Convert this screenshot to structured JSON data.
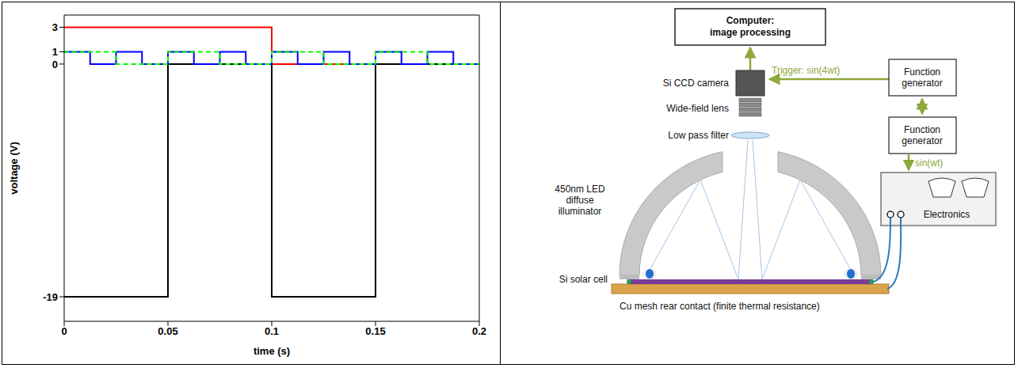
{
  "chart_data": {
    "type": "step",
    "xlabel": "time (s)",
    "ylabel": "voltage (V)",
    "x": [
      0,
      0.0125,
      0.025,
      0.0375,
      0.05,
      0.0625,
      0.075,
      0.0875,
      0.1,
      0.1125,
      0.125,
      0.1375,
      0.15,
      0.1625,
      0.175,
      0.1875,
      0.2
    ],
    "series": [
      {
        "color": "#ff0000",
        "line_style": "solid",
        "values": [
          3,
          3,
          3,
          3,
          3,
          3,
          3,
          3,
          0,
          0,
          0,
          0,
          0,
          0,
          0,
          0,
          0
        ]
      },
      {
        "color": "#000000",
        "line_style": "solid",
        "values": [
          -19,
          -19,
          -19,
          -19,
          0,
          0,
          0,
          0,
          -19,
          -19,
          -19,
          -19,
          0,
          0,
          0,
          0,
          0
        ]
      },
      {
        "color": "#0000ff",
        "line_style": "solid",
        "values": [
          1,
          0,
          1,
          0,
          1,
          0,
          1,
          0,
          1,
          0,
          1,
          0,
          1,
          0,
          1,
          0,
          0
        ]
      },
      {
        "color": "#00ff00",
        "line_style": "dashed",
        "values": [
          1,
          1,
          0,
          0,
          1,
          1,
          0,
          0,
          1,
          1,
          0,
          0,
          1,
          1,
          0,
          0,
          0
        ]
      }
    ],
    "xlim": [
      0,
      0.2
    ],
    "xticks": [
      0,
      0.05,
      0.1,
      0.15,
      0.2
    ],
    "ylim": [
      -21,
      4
    ],
    "yticks": [
      -19,
      0,
      1,
      3
    ],
    "grid": false
  },
  "diagram": {
    "computer": [
      "Computer:",
      "image processing"
    ],
    "camera": "Si CCD camera",
    "lens": "Wide-field lens",
    "filter": "Low pass filter",
    "trigger": "Trigger: sin(4wt)",
    "function_generators": [
      [
        "Function",
        "generator"
      ],
      [
        "Function",
        "generator"
      ]
    ],
    "drive": "sin(wt)",
    "electronics": "Electronics",
    "illuminator": [
      "450nm LED",
      "diffuse",
      "illuminator"
    ],
    "solar_cell": "Si solar cell",
    "rear_contact": "Cu mesh rear contact (finite thermal resistance)"
  }
}
